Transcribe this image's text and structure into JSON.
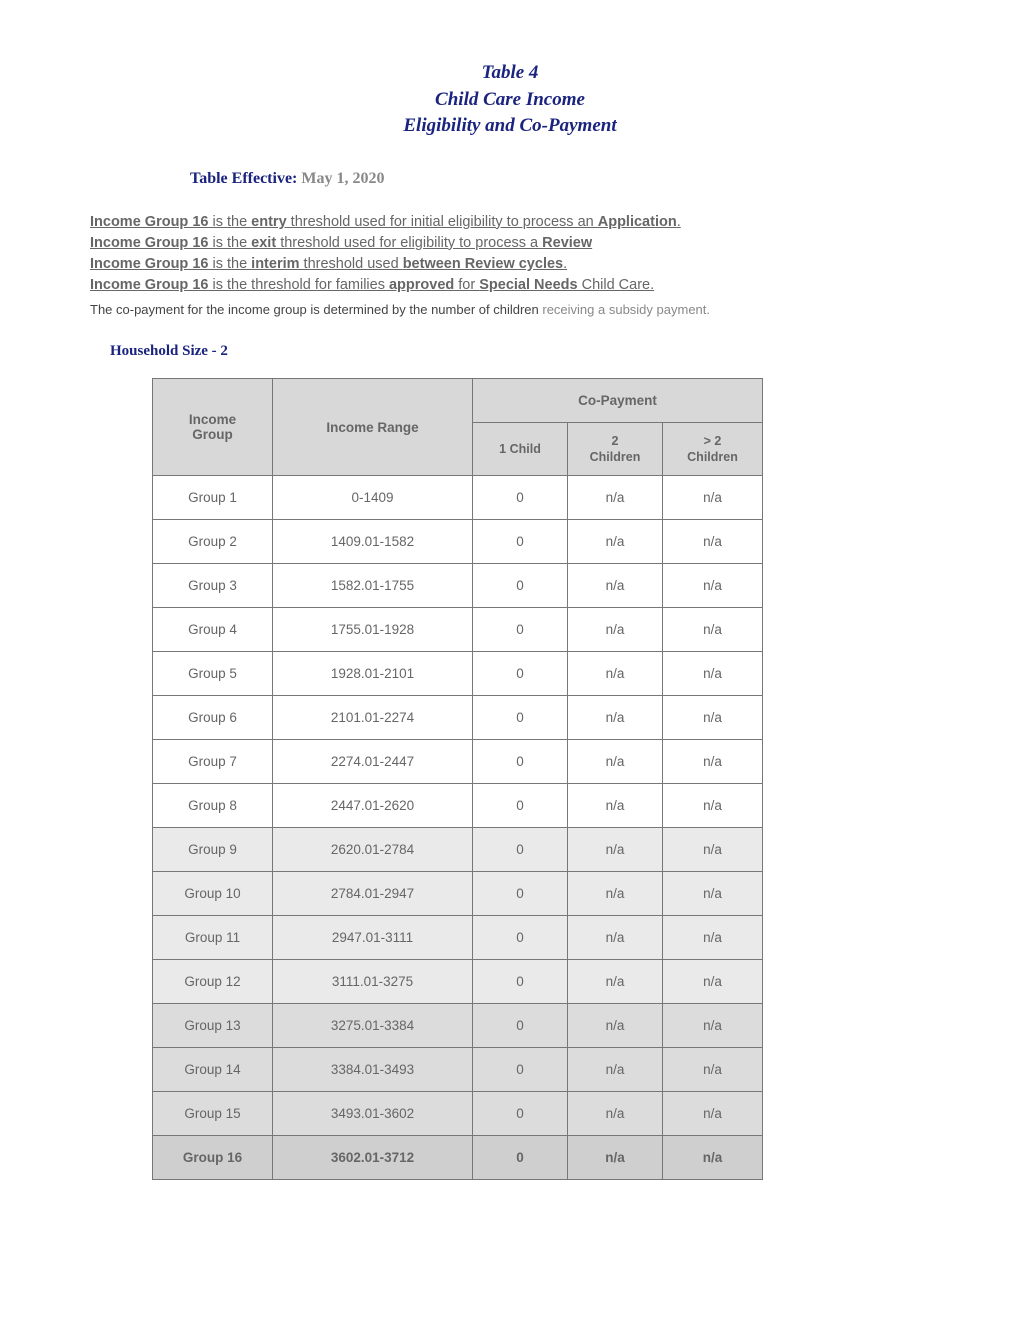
{
  "title": {
    "line1": "Table 4",
    "line2": "Child Care Income",
    "line3": "Eligibility and Co-Payment"
  },
  "effective": {
    "label": "Table Effective:",
    "date": "May 1, 2020"
  },
  "notes": {
    "line1_pre": "Income Group 16",
    "line1_mid1": " is the ",
    "line1_b1": "entry",
    "line1_mid2": " threshold used for initial eligibility to process an ",
    "line1_b2": "Application",
    "line1_end": ".",
    "line2_pre": "Income Group 16",
    "line2_mid1": " is the ",
    "line2_b1": "exit",
    "line2_mid2": " threshold used for eligibility to process a ",
    "line2_b2": "Review",
    "line3_pre": "Income Group 16",
    "line3_mid1": " is the ",
    "line3_b1": "interim",
    "line3_mid2": " threshold used ",
    "line3_b2": "between Review cycles",
    "line3_end": ".",
    "line4_pre": "Income Group 16",
    "line4_mid1": " is the threshold for families ",
    "line4_b1": "approved",
    "line4_mid2": " for ",
    "line4_b2": "Special Needs",
    "line4_end": " Child Care."
  },
  "copay_note": {
    "part1": "The co-payment for the income group is determined by the number of children ",
    "part2": "receiving a subsidy payment."
  },
  "household_label": "Household Size - 2",
  "table": {
    "headers": {
      "income_group": "Income\nGroup",
      "income_range": "Income Range",
      "copayment": "Co-Payment",
      "c1": "1 Child",
      "c2": "2\nChildren",
      "c3": "> 2\nChildren"
    },
    "rows": [
      {
        "group": "Group 1",
        "range": "0-1409",
        "c1": "0",
        "c2": "n/a",
        "c3": "n/a",
        "shade": 0
      },
      {
        "group": "Group 2",
        "range": "1409.01-1582",
        "c1": "0",
        "c2": "n/a",
        "c3": "n/a",
        "shade": 0
      },
      {
        "group": "Group 3",
        "range": "1582.01-1755",
        "c1": "0",
        "c2": "n/a",
        "c3": "n/a",
        "shade": 0
      },
      {
        "group": "Group 4",
        "range": "1755.01-1928",
        "c1": "0",
        "c2": "n/a",
        "c3": "n/a",
        "shade": 0
      },
      {
        "group": "Group 5",
        "range": "1928.01-2101",
        "c1": "0",
        "c2": "n/a",
        "c3": "n/a",
        "shade": 0
      },
      {
        "group": "Group 6",
        "range": "2101.01-2274",
        "c1": "0",
        "c2": "n/a",
        "c3": "n/a",
        "shade": 0
      },
      {
        "group": "Group 7",
        "range": "2274.01-2447",
        "c1": "0",
        "c2": "n/a",
        "c3": "n/a",
        "shade": 0
      },
      {
        "group": "Group 8",
        "range": "2447.01-2620",
        "c1": "0",
        "c2": "n/a",
        "c3": "n/a",
        "shade": 0
      },
      {
        "group": "Group 9",
        "range": "2620.01-2784",
        "c1": "0",
        "c2": "n/a",
        "c3": "n/a",
        "shade": 1
      },
      {
        "group": "Group 10",
        "range": "2784.01-2947",
        "c1": "0",
        "c2": "n/a",
        "c3": "n/a",
        "shade": 1
      },
      {
        "group": "Group 11",
        "range": "2947.01-3111",
        "c1": "0",
        "c2": "n/a",
        "c3": "n/a",
        "shade": 1
      },
      {
        "group": "Group 12",
        "range": "3111.01-3275",
        "c1": "0",
        "c2": "n/a",
        "c3": "n/a",
        "shade": 1
      },
      {
        "group": "Group 13",
        "range": "3275.01-3384",
        "c1": "0",
        "c2": "n/a",
        "c3": "n/a",
        "shade": 2
      },
      {
        "group": "Group 14",
        "range": "3384.01-3493",
        "c1": "0",
        "c2": "n/a",
        "c3": "n/a",
        "shade": 2
      },
      {
        "group": "Group 15",
        "range": "3493.01-3602",
        "c1": "0",
        "c2": "n/a",
        "c3": "n/a",
        "shade": 2
      },
      {
        "group": "Group 16",
        "range": "3602.01-3712",
        "c1": "0",
        "c2": "n/a",
        "c3": "n/a",
        "shade": 3
      }
    ]
  }
}
